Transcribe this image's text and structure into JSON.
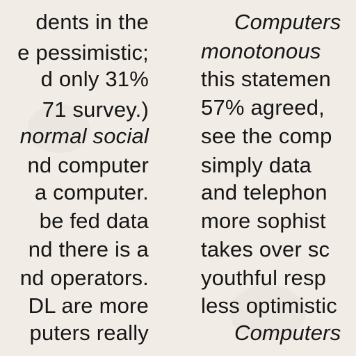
{
  "document": {
    "left_column": {
      "lines": [
        "dents in the",
        "e pessimistic;",
        "d only 31%",
        "71 survey.)",
        "normal social",
        "nd computer",
        "a computer.",
        "be fed data",
        "nd there is a",
        "nd operators.",
        "DL are more",
        "puters really"
      ]
    },
    "right_column": {
      "lines": [
        "Computers",
        "monotonous",
        "this statemen",
        "57% agreed,",
        "see the comp",
        "simply data",
        "and telephon",
        "more sophist",
        "takes over sc",
        "youthful resp",
        "less optimistic",
        "Computers"
      ]
    }
  }
}
